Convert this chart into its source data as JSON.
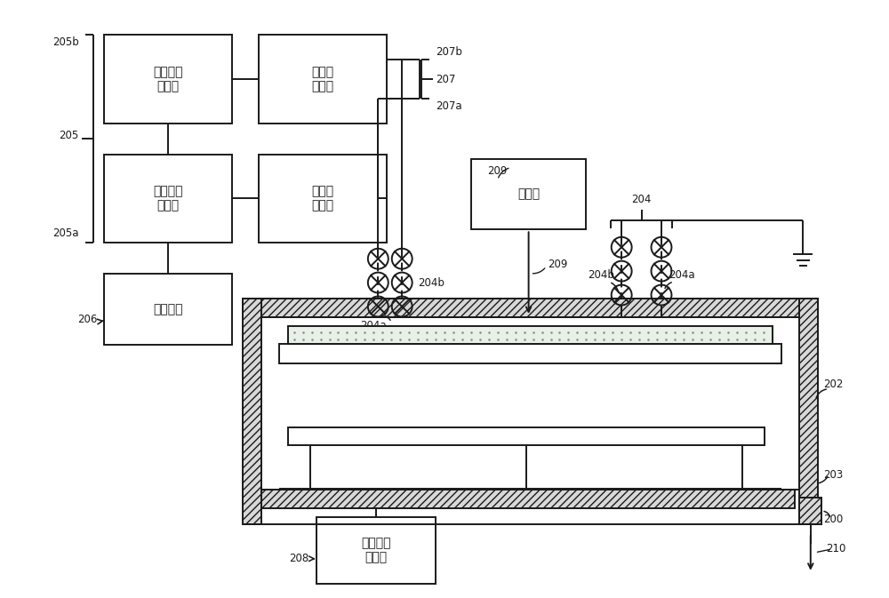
{
  "bg_color": "#ffffff",
  "line_color": "#1a1a1a",
  "labels": {
    "box_rf2": "第二射频\n功率源",
    "box_match2": "第二匹\n配装置",
    "box_rf1": "第一射频\n功率源",
    "box_match1": "第一匹\n配装置",
    "box_ctrl": "控制单元",
    "box_gas": "供气源",
    "box_bias": "偏置射频\n功率源",
    "n205": "205",
    "n205a": "205a",
    "n205b": "205b",
    "n206": "206",
    "n207": "207",
    "n207a": "207a",
    "n207b": "207b",
    "n204": "204",
    "n204a": "204a",
    "n204b": "204b",
    "n209": "209",
    "n208": "208",
    "n202": "202",
    "n203": "203",
    "n200": "200",
    "n210": "210"
  }
}
